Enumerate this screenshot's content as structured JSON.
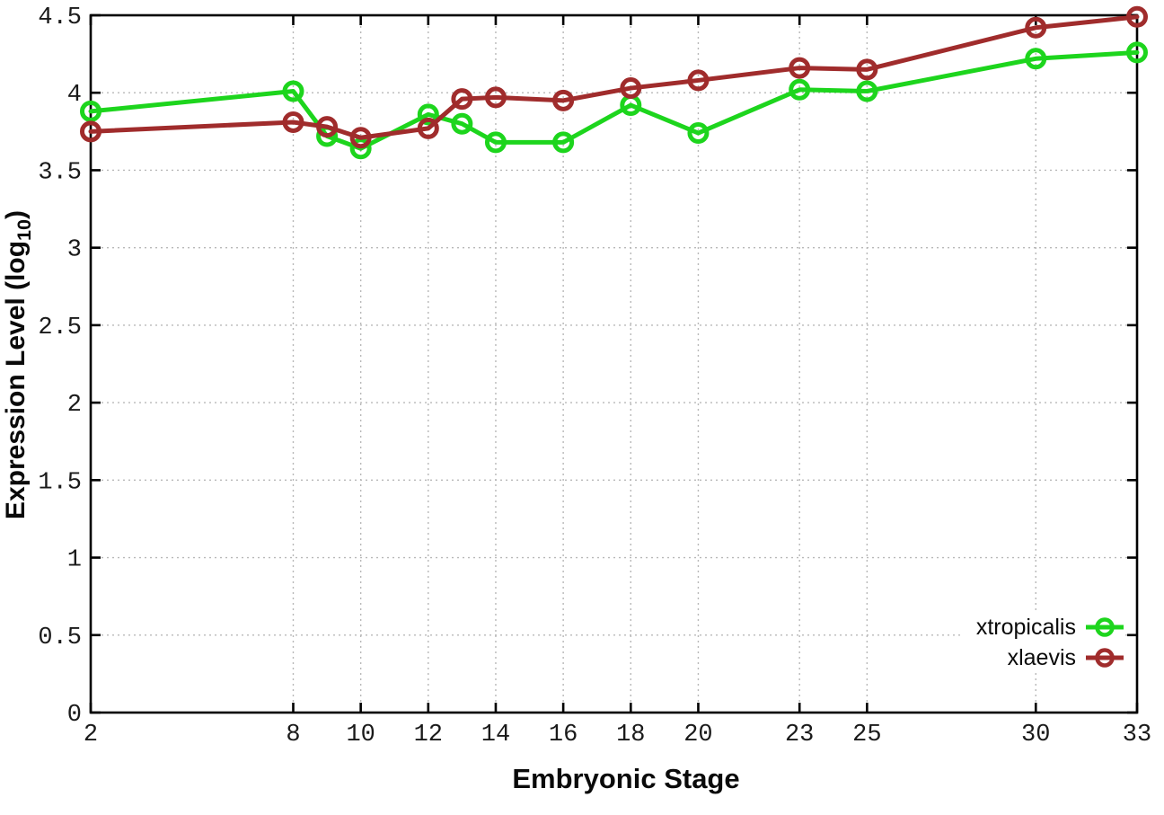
{
  "chart_data": {
    "type": "line",
    "title": "",
    "xlabel": "Embryonic Stage",
    "ylabel": "Expression Level (log10)",
    "ylabel_parts": {
      "pre": "Expression Level (log",
      "sub": "10",
      "post": ")"
    },
    "xlim": [
      2,
      33
    ],
    "ylim": [
      0,
      4.5
    ],
    "grid": true,
    "legend_position": "bottom-right",
    "x": [
      2,
      8,
      9,
      10,
      12,
      13,
      14,
      16,
      18,
      20,
      23,
      25,
      30,
      33
    ],
    "x_ticks": [
      2,
      8,
      10,
      12,
      14,
      16,
      18,
      20,
      23,
      25,
      30,
      33
    ],
    "x_tick_labels": [
      "2",
      "8",
      "10",
      "12",
      "14",
      "16",
      "18",
      "20",
      "23",
      "25",
      "30",
      "33"
    ],
    "y_ticks": [
      0,
      0.5,
      1,
      1.5,
      2,
      2.5,
      3,
      3.5,
      4,
      4.5
    ],
    "y_tick_labels": [
      "0",
      "0.5",
      "1",
      "1.5",
      "2",
      "2.5",
      "3",
      "3.5",
      "4",
      "4.5"
    ],
    "series": [
      {
        "name": "xtropicalis",
        "color": "#1dd51d",
        "marker": "open-circle",
        "values": [
          3.88,
          4.01,
          3.72,
          3.64,
          3.86,
          3.8,
          3.68,
          3.68,
          3.92,
          3.74,
          4.02,
          4.01,
          4.22,
          4.26
        ]
      },
      {
        "name": "xlaevis",
        "color": "#a02c2c",
        "marker": "open-circle",
        "values": [
          3.75,
          3.81,
          3.78,
          3.71,
          3.77,
          3.96,
          3.97,
          3.95,
          4.03,
          4.08,
          4.16,
          4.15,
          4.42,
          4.49
        ]
      }
    ],
    "style": {
      "grid_color": "#b8b8b8",
      "border_color": "#000000",
      "tick_label_color": "#1a1a1a",
      "background": "#ffffff"
    }
  },
  "legend": {
    "items": [
      {
        "label": "xtropicalis"
      },
      {
        "label": "xlaevis"
      }
    ]
  }
}
